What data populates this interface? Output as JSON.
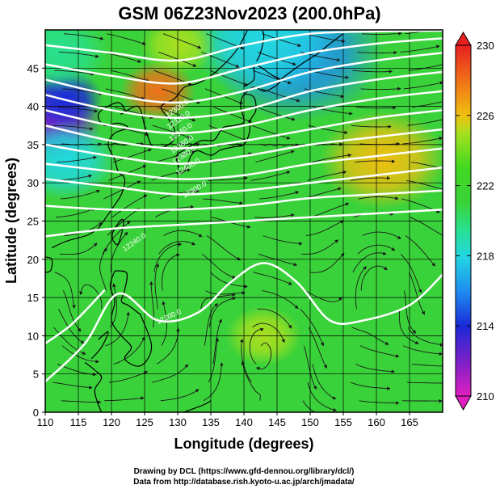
{
  "chart_data": {
    "type": "heatmap",
    "title": "GSM 06Z23Nov2023 (200.0hPa)",
    "xlabel": "Longitude (degrees)",
    "ylabel": "Latitude  (degrees)",
    "xlim": [
      110,
      170
    ],
    "ylim": [
      0,
      50
    ],
    "x_ticks": [
      110,
      115,
      120,
      125,
      130,
      135,
      140,
      145,
      150,
      155,
      160,
      165
    ],
    "y_ticks": [
      0,
      5,
      10,
      15,
      20,
      25,
      30,
      35,
      40,
      45
    ],
    "grid": true,
    "colorbar": {
      "label_values": [
        210,
        214,
        218,
        222,
        226,
        230
      ],
      "range": [
        210,
        230
      ],
      "stops": [
        {
          "value": 210,
          "color": "#e020c0"
        },
        {
          "value": 212,
          "color": "#7a20c8"
        },
        {
          "value": 214,
          "color": "#1a2ad8"
        },
        {
          "value": 216,
          "color": "#1e8ef0"
        },
        {
          "value": 218,
          "color": "#22d8e0"
        },
        {
          "value": 219.5,
          "color": "#28e090"
        },
        {
          "value": 221,
          "color": "#3ad23a"
        },
        {
          "value": 223,
          "color": "#40d820"
        },
        {
          "value": 225,
          "color": "#a8e020"
        },
        {
          "value": 226,
          "color": "#f0c010"
        },
        {
          "value": 228,
          "color": "#f07018"
        },
        {
          "value": 230,
          "color": "#e82020"
        }
      ]
    },
    "field_features": [
      {
        "type": "min",
        "lon": 111,
        "lat": 38,
        "value": 212,
        "size": 4
      },
      {
        "type": "min",
        "lon": 113,
        "lat": 41,
        "value": 214,
        "size": 3
      },
      {
        "type": "min",
        "lon": 113,
        "lat": 33,
        "value": 217,
        "size": 4
      },
      {
        "type": "min",
        "lon": 148,
        "lat": 47,
        "value": 216,
        "size": 7
      },
      {
        "type": "min",
        "lon": 143,
        "lat": 49,
        "value": 217,
        "size": 6
      },
      {
        "type": "min",
        "lon": 112,
        "lat": 47,
        "value": 219,
        "size": 4
      },
      {
        "type": "max",
        "lon": 127,
        "lat": 42,
        "value": 227,
        "size": 3
      },
      {
        "type": "max",
        "lon": 161,
        "lat": 33,
        "value": 225.5,
        "size": 5
      },
      {
        "type": "max",
        "lon": 143,
        "lat": 10,
        "value": 225,
        "size": 3
      },
      {
        "type": "max",
        "lon": 130,
        "lat": 48,
        "value": 224,
        "size": 3
      }
    ],
    "contours": [
      {
        "y": [
          48,
          47,
          46,
          48,
          49.5,
          49.8,
          49.9
        ]
      },
      {
        "y": [
          45.5,
          44,
          43,
          45,
          47,
          48.2,
          48.9
        ]
      },
      {
        "y": [
          43.5,
          41.5,
          40.5,
          42,
          44.5,
          46,
          47
        ]
      },
      {
        "y": [
          41.5,
          39.5,
          38.5,
          39.5,
          42,
          43.5,
          44.5
        ]
      },
      {
        "y": [
          39.5,
          37.5,
          36.5,
          37.5,
          39.5,
          41,
          42
        ]
      },
      {
        "y": [
          37.5,
          35.5,
          34.5,
          35.5,
          37,
          38.5,
          39.5
        ]
      },
      {
        "y": [
          35,
          33.5,
          32.5,
          33.5,
          35,
          36,
          37
        ]
      },
      {
        "y": [
          32.5,
          31.5,
          30.5,
          31,
          32.5,
          33.5,
          34.5
        ]
      },
      {
        "y": [
          30.5,
          29.5,
          28.5,
          29,
          30,
          31,
          32
        ]
      },
      {
        "y": [
          27,
          26.5,
          26.5,
          27,
          28,
          28.5,
          29
        ]
      },
      {
        "y": [
          23,
          24,
          24.5,
          25,
          25.5,
          26,
          26.5
        ]
      }
    ],
    "contour_lons": [
      110,
      120,
      130,
      140,
      150,
      160,
      170
    ],
    "contour_labels": [
      "12300.0",
      "12320.0",
      "12340.0",
      "12360.0",
      "12380.0",
      "12400.0",
      "12300.0",
      "12240.0",
      "12200.0"
    ]
  },
  "credits": [
    "Drawing by DCL (https://www.gfd-dennou.org/library/dcl/)",
    "Data from http://database.rish.kyoto-u.ac.jp/arch/jmadata/"
  ]
}
